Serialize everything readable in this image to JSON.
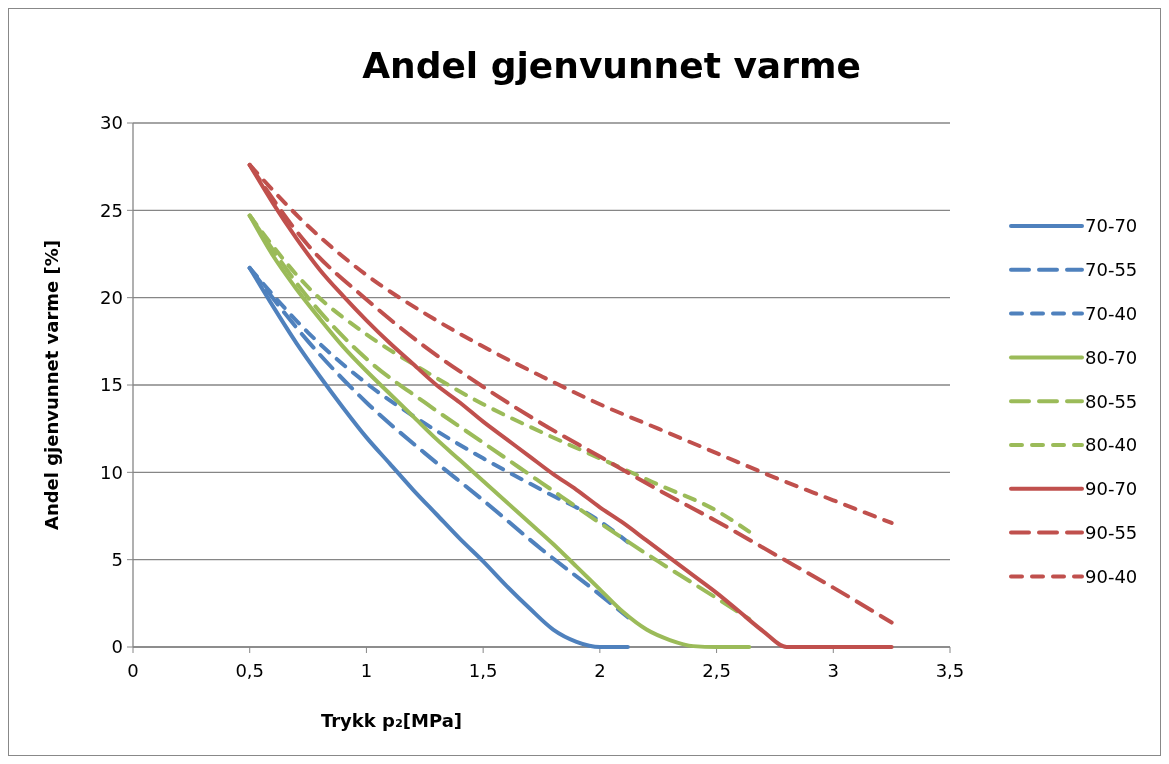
{
  "chart_data": {
    "type": "line",
    "title": "Andel gjenvunnet varme",
    "xlabel": "Trykk p₂[MPa]",
    "ylabel": "Andel gjenvunnet varme [%]",
    "xlim": [
      0,
      3.5
    ],
    "xticks": [
      0,
      {
        "value": 0.5,
        "label": "0,5"
      },
      1,
      {
        "value": 1.5,
        "label": "1,5"
      },
      2,
      {
        "value": 2.5,
        "label": "2,5"
      },
      3,
      {
        "value": 3.5,
        "label": "3,5"
      }
    ],
    "ylim": [
      0,
      30
    ],
    "yticks": [
      0,
      5,
      10,
      15,
      20,
      25,
      30
    ],
    "grid": "y",
    "legend": "right",
    "series": [
      {
        "name": "70-70",
        "color": "#4f81bd",
        "line_style": "solid",
        "x": [
          0.5,
          0.6,
          0.7,
          0.8,
          0.9,
          1.0,
          1.1,
          1.2,
          1.3,
          1.4,
          1.5,
          1.6,
          1.7,
          1.8,
          1.9,
          2.0,
          2.12
        ],
        "values": [
          21.7,
          19.5,
          17.4,
          15.5,
          13.7,
          12.0,
          10.5,
          9.0,
          7.6,
          6.2,
          4.9,
          3.5,
          2.2,
          1.0,
          0.3,
          0,
          0
        ]
      },
      {
        "name": "70-55",
        "color": "#4f81bd",
        "line_style": "dashed",
        "x": [
          0.5,
          0.75,
          1.0,
          1.25,
          1.5,
          1.75,
          2.0,
          2.12
        ],
        "values": [
          21.7,
          17.5,
          14.0,
          11.1,
          8.4,
          5.6,
          3.0,
          1.7
        ]
      },
      {
        "name": "70-40",
        "color": "#4f81bd",
        "line_style": "dashed",
        "x": [
          0.5,
          0.75,
          1.0,
          1.25,
          1.5,
          1.75,
          2.0,
          2.12
        ],
        "values": [
          21.7,
          18.0,
          15.1,
          12.8,
          10.8,
          9.0,
          7.2,
          6.0
        ]
      },
      {
        "name": "80-70",
        "color": "#9bbb59",
        "line_style": "solid",
        "x": [
          0.5,
          0.6,
          0.7,
          0.8,
          0.9,
          1.0,
          1.1,
          1.2,
          1.3,
          1.4,
          1.5,
          1.6,
          1.7,
          1.8,
          1.9,
          2.0,
          2.1,
          2.2,
          2.3,
          2.4,
          2.5,
          2.64
        ],
        "values": [
          24.7,
          22.4,
          20.5,
          18.8,
          17.2,
          15.8,
          14.5,
          13.2,
          11.9,
          10.7,
          9.5,
          8.3,
          7.1,
          5.9,
          4.6,
          3.3,
          2.0,
          1.0,
          0.4,
          0.05,
          0,
          0
        ]
      },
      {
        "name": "80-55",
        "color": "#9bbb59",
        "line_style": "dashed",
        "x": [
          0.5,
          0.75,
          1.0,
          1.25,
          1.5,
          1.75,
          2.0,
          2.25,
          2.5,
          2.64
        ],
        "values": [
          24.7,
          20.0,
          16.5,
          14.0,
          11.7,
          9.4,
          7.1,
          4.9,
          2.8,
          1.6
        ]
      },
      {
        "name": "80-40",
        "color": "#9bbb59",
        "line_style": "dashed",
        "x": [
          0.5,
          0.75,
          1.0,
          1.25,
          1.5,
          1.75,
          2.0,
          2.25,
          2.5,
          2.64
        ],
        "values": [
          24.7,
          20.6,
          17.9,
          15.8,
          13.9,
          12.3,
          10.8,
          9.3,
          7.8,
          6.6
        ]
      },
      {
        "name": "90-70",
        "color": "#c0504d",
        "line_style": "solid",
        "x": [
          0.5,
          0.6,
          0.7,
          0.8,
          0.9,
          1.0,
          1.1,
          1.2,
          1.3,
          1.4,
          1.5,
          1.6,
          1.7,
          1.8,
          1.9,
          2.0,
          2.1,
          2.2,
          2.3,
          2.4,
          2.5,
          2.6,
          2.7,
          2.8,
          2.9,
          3.0,
          3.1,
          3.25
        ],
        "values": [
          27.6,
          25.4,
          23.4,
          21.6,
          20.1,
          18.7,
          17.4,
          16.2,
          15.0,
          14.0,
          12.9,
          11.9,
          10.9,
          9.9,
          9.0,
          8.0,
          7.1,
          6.1,
          5.1,
          4.1,
          3.1,
          2.0,
          0.9,
          0,
          0,
          0,
          0,
          0
        ]
      },
      {
        "name": "90-55",
        "color": "#c0504d",
        "line_style": "dashed",
        "x": [
          0.5,
          0.75,
          1.0,
          1.25,
          1.5,
          1.75,
          2.0,
          2.25,
          2.5,
          2.75,
          3.0,
          3.25
        ],
        "values": [
          27.6,
          23.0,
          19.9,
          17.2,
          14.9,
          12.8,
          10.9,
          9.0,
          7.2,
          5.3,
          3.4,
          1.4
        ]
      },
      {
        "name": "90-40",
        "color": "#c0504d",
        "line_style": "dashed",
        "x": [
          0.5,
          0.75,
          1.0,
          1.25,
          1.5,
          1.75,
          2.0,
          2.25,
          2.5,
          2.75,
          3.0,
          3.25
        ],
        "values": [
          27.6,
          24.1,
          21.3,
          19.1,
          17.2,
          15.5,
          13.9,
          12.5,
          11.1,
          9.7,
          8.4,
          7.1
        ]
      }
    ]
  }
}
